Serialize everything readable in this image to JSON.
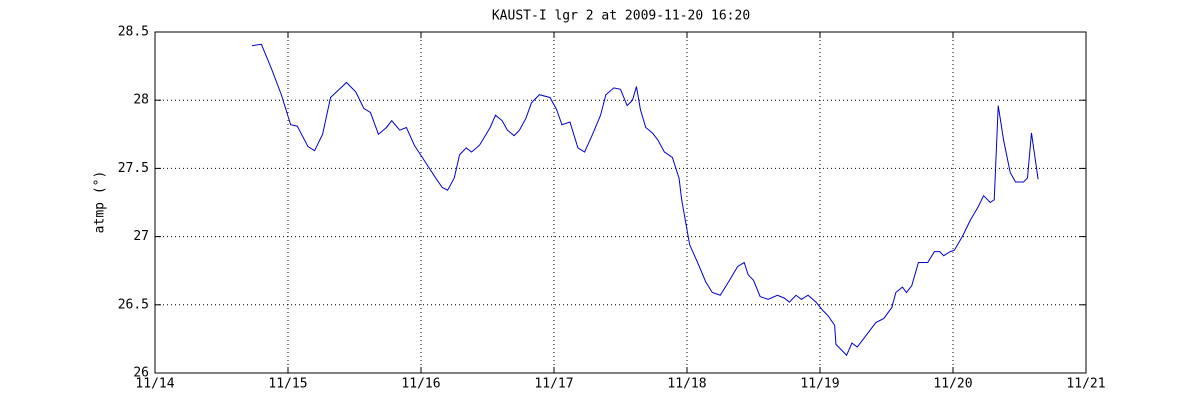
{
  "chart_data": {
    "type": "line",
    "title": "KAUST-I lgr 2 at 2009-11-20 16:20",
    "y_label": "atmp (°)",
    "x": [
      0.73,
      0.8,
      0.88,
      0.95,
      1.02,
      1.07,
      1.15,
      1.2,
      1.26,
      1.32,
      1.44,
      1.51,
      1.57,
      1.62,
      1.68,
      1.74,
      1.78,
      1.84,
      1.89,
      1.95,
      2.01,
      2.07,
      2.11,
      2.16,
      2.2,
      2.25,
      2.29,
      2.34,
      2.38,
      2.44,
      2.52,
      2.56,
      2.61,
      2.65,
      2.7,
      2.74,
      2.79,
      2.83,
      2.89,
      2.97,
      3.02,
      3.06,
      3.12,
      3.18,
      3.23,
      3.29,
      3.35,
      3.39,
      3.45,
      3.5,
      3.55,
      3.59,
      3.62,
      3.65,
      3.69,
      3.74,
      3.78,
      3.83,
      3.89,
      3.94,
      3.96,
      4.02,
      4.08,
      4.14,
      4.19,
      4.25,
      4.32,
      4.38,
      4.43,
      4.46,
      4.5,
      4.55,
      4.61,
      4.68,
      4.73,
      4.77,
      4.82,
      4.86,
      4.91,
      4.97,
      5.02,
      5.06,
      5.11,
      5.12,
      5.2,
      5.24,
      5.28,
      5.35,
      5.42,
      5.48,
      5.54,
      5.57,
      5.62,
      5.65,
      5.69,
      5.74,
      5.81,
      5.86,
      5.9,
      5.93,
      5.98,
      6.01,
      6.07,
      6.13,
      6.19,
      6.23,
      6.28,
      6.31,
      6.34,
      6.38,
      6.43,
      6.47,
      6.53,
      6.56,
      6.59,
      6.64
    ],
    "series": [
      {
        "color": "#0000cc",
        "values": [
          28.4,
          28.41,
          28.22,
          28.04,
          27.82,
          27.81,
          27.66,
          27.63,
          27.75,
          28.02,
          28.13,
          28.06,
          27.94,
          27.91,
          27.75,
          27.8,
          27.85,
          27.78,
          27.8,
          27.67,
          27.58,
          27.49,
          27.43,
          27.36,
          27.34,
          27.43,
          27.6,
          27.65,
          27.62,
          27.67,
          27.8,
          27.89,
          27.85,
          27.78,
          27.74,
          27.78,
          27.87,
          27.98,
          28.04,
          28.02,
          27.93,
          27.82,
          27.84,
          27.65,
          27.62,
          27.75,
          27.89,
          28.04,
          28.09,
          28.08,
          27.96,
          28.0,
          28.1,
          27.93,
          27.8,
          27.76,
          27.71,
          27.62,
          27.58,
          27.43,
          27.27,
          26.94,
          26.81,
          26.67,
          26.59,
          26.57,
          26.68,
          26.78,
          26.81,
          26.72,
          26.68,
          26.56,
          26.54,
          26.57,
          26.55,
          26.52,
          26.57,
          26.54,
          26.57,
          26.52,
          26.46,
          26.42,
          26.35,
          26.21,
          26.13,
          26.22,
          26.19,
          26.28,
          26.37,
          26.4,
          26.48,
          26.59,
          26.63,
          26.59,
          26.64,
          26.81,
          26.81,
          26.89,
          26.89,
          26.86,
          26.89,
          26.9,
          27.0,
          27.12,
          27.22,
          27.3,
          27.25,
          27.27,
          27.96,
          27.71,
          27.47,
          27.4,
          27.4,
          27.43,
          27.76,
          27.42
        ]
      }
    ],
    "xlim": [
      0,
      7
    ],
    "xticks": [
      {
        "value": 0,
        "label": "11/14"
      },
      {
        "value": 1,
        "label": "11/15"
      },
      {
        "value": 2,
        "label": "11/16"
      },
      {
        "value": 3,
        "label": "11/17"
      },
      {
        "value": 4,
        "label": "11/18"
      },
      {
        "value": 5,
        "label": "11/19"
      },
      {
        "value": 6,
        "label": "11/20"
      },
      {
        "value": 7,
        "label": "11/21"
      }
    ],
    "ylim": [
      26,
      28.5
    ],
    "yticks": [
      26,
      26.5,
      27,
      27.5,
      28,
      28.5
    ],
    "grid": true
  }
}
